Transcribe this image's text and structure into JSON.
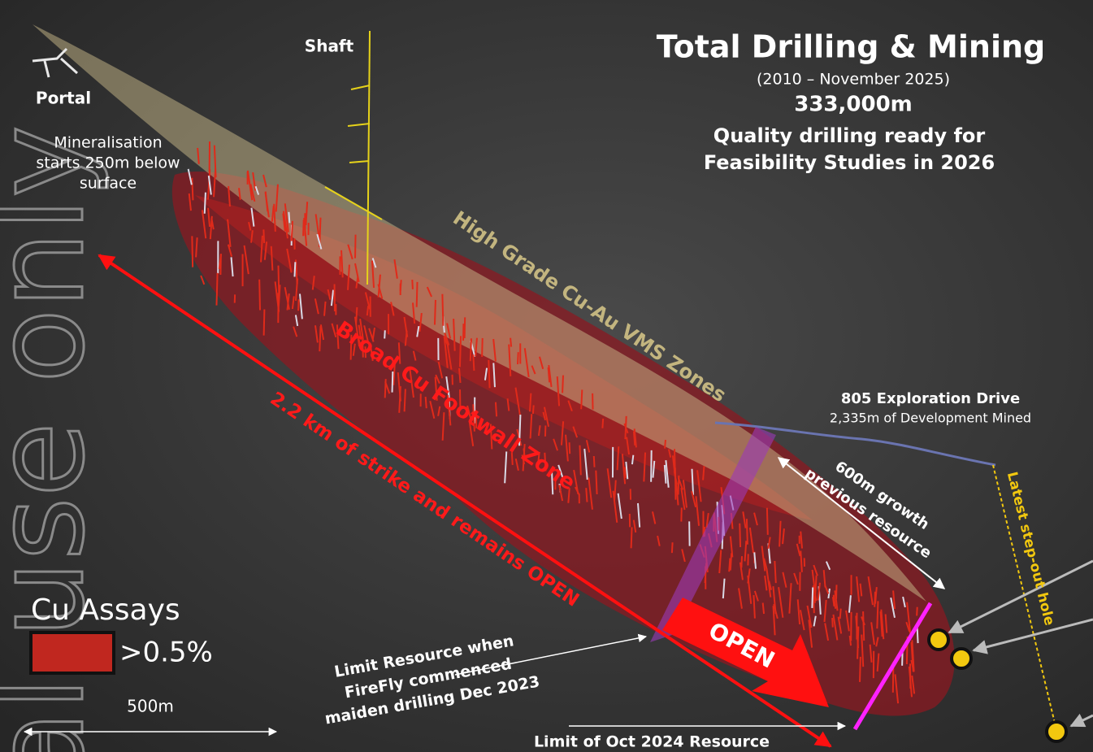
{
  "title": {
    "heading": "Total Drilling & Mining",
    "period": "(2010 – November 2025)",
    "total": "333,000m",
    "subtitle_lines": [
      "Quality drilling ready for",
      "Feasibility Studies in 2026"
    ]
  },
  "labels": {
    "shaft": "Shaft",
    "portal": "Portal",
    "mineralisation_lines": [
      "Mineralisation",
      "starts 250m below",
      "surface"
    ],
    "high_grade": "High Grade Cu-Au VMS Zones",
    "footwall": "Broad Cu Footwall Zone",
    "strike": "2.2 km of strike and remains OPEN",
    "drive_title": "805 Exploration Drive",
    "drive_detail": "2,335m of Development Mined",
    "growth_lines": [
      "600m growth",
      "previous resource"
    ],
    "step_out": "Latest step-out hole",
    "open": "OPEN",
    "limit_2023_lines": [
      "Limit Resource when",
      "FireFly commenced",
      "maiden drilling Dec 2023"
    ],
    "limit_2024": "Limit of Oct 2024 Resource"
  },
  "legend": {
    "title": "Cu Assays",
    "item": ">0.5%",
    "scale": "500m"
  },
  "watermark": "al use only"
}
